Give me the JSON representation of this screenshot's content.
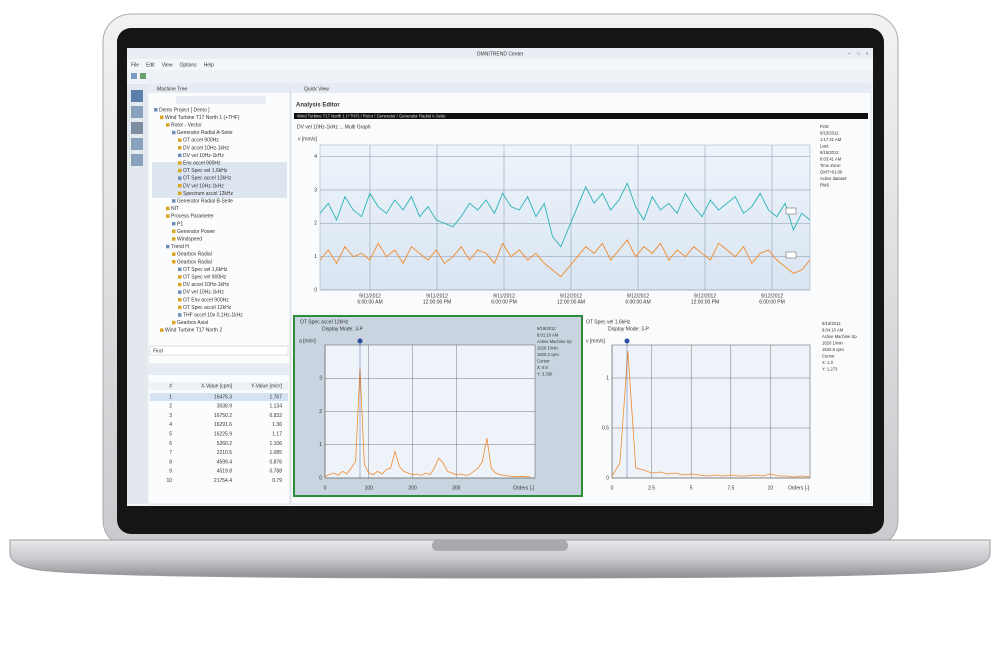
{
  "window": {
    "title": "OMNITREND Center",
    "menu": [
      "File",
      "Edit",
      "View",
      "Options",
      "Help"
    ]
  },
  "machine_tree": {
    "title": "Machine Tree",
    "items": [
      "Demo Project [ Demo ]",
      "Wind Turbine T17 North 1 (+THF)",
      "Rotor - Vector",
      "Generator Radial A-Seite",
      "OT accel 900Hz",
      "DV accel 10Hz-1kHz",
      "DV vel 10Hz-1kHz",
      "Env accel 900Hz",
      "OT Spec vel 1,6kHz",
      "OT Spec accel 12kHz",
      "DV vel 10Hz-1kHz",
      "Spectrum accel 12kHz",
      "Generator Radial B-Seite",
      "NIT",
      "Process Parameter",
      "P1",
      "Generator Power",
      "Windspeed",
      "Trend H",
      "Gearbox Radial",
      "Gearbox Radial",
      "OT Spec vel 1,6kHz",
      "OT Spec vel 900Hz",
      "DV accel 10Hz-1kHz",
      "DV vel 10Hz-1kHz",
      "OT Env accel 900Hz",
      "OT Spec accel 12kHz",
      "THF accel 10x 0,1Hz-1kHz",
      "Gearbox Axial",
      "Wind Turbine T17 North 2"
    ],
    "find": "Find"
  },
  "table": {
    "columns": [
      "#",
      "X-Value [cpm]",
      "Y-Value [m/s²]"
    ],
    "rows": [
      [
        1,
        16475.3,
        1.767
      ],
      [
        2,
        3038.9,
        1.134
      ],
      [
        3,
        16750.2,
        0.832
      ],
      [
        4,
        16291.6,
        1.36
      ],
      [
        5,
        16225.9,
        1.17
      ],
      [
        6,
        5260.2,
        1.106
      ],
      [
        7,
        2210.5,
        1.085
      ],
      [
        8,
        4599.4,
        0.876
      ],
      [
        9,
        4519.8,
        0.788
      ],
      [
        10,
        21754.4,
        0.79
      ]
    ]
  },
  "quick_view": {
    "tab": "Quick View",
    "editor_title": "Analysis Editor",
    "path": "Wind Turbine T17 North 1 (+THF) / Rotor / Generator / Generator Radial A-Seite"
  },
  "chart_data": [
    {
      "type": "trend",
      "subtitle": "DV vel 10Hz-1kHz ... Multi Graph",
      "y_label": "v [mm/s]",
      "ylim": [
        0,
        4.2
      ],
      "yticks": [
        0,
        1,
        2,
        3,
        4
      ],
      "grid": true,
      "x_tick_labels": [
        {
          "date": "9/11/2012",
          "time": "6:00:00 AM"
        },
        {
          "date": "9/11/2012",
          "time": "12:00:00 PM"
        },
        {
          "date": "9/11/2012",
          "time": "6:00:00 PM"
        },
        {
          "date": "9/12/2012",
          "time": "12:00:00 AM"
        },
        {
          "date": "9/12/2012",
          "time": "6:00:00 AM"
        },
        {
          "date": "9/12/2012",
          "time": "12:00:00 PM"
        },
        {
          "date": "9/12/2012",
          "time": "6:00:00 PM"
        }
      ],
      "series": [
        {
          "color": "#2bb3b8",
          "values": [
            2.3,
            2.6,
            2.1,
            2.8,
            2.4,
            2.2,
            2.9,
            2.5,
            2.3,
            2.7,
            2.4,
            2.8,
            2.2,
            2.5,
            2.1,
            2.0,
            1.9,
            2.2,
            2.6,
            2.4,
            2.7,
            2.3,
            2.9,
            2.5,
            2.4,
            2.8,
            2.2,
            2.6,
            1.6,
            1.3,
            1.9,
            2.5,
            3.1,
            2.6,
            2.9,
            2.4,
            2.7,
            3.2,
            2.5,
            2.1,
            2.8,
            2.4,
            2.6,
            2.3,
            2.9,
            2.5,
            2.2,
            2.7,
            2.4,
            2.6,
            2.8,
            2.3,
            2.5,
            2.9,
            2.4,
            2.2,
            2.6,
            1.8,
            2.3,
            2.1
          ]
        },
        {
          "color": "#f08a2c",
          "values": [
            0.9,
            1.2,
            0.8,
            1.3,
            1.0,
            1.1,
            0.9,
            1.4,
            1.0,
            1.2,
            0.8,
            1.3,
            1.1,
            0.9,
            1.2,
            0.8,
            1.0,
            1.3,
            0.9,
            1.2,
            1.1,
            0.8,
            1.4,
            1.0,
            1.2,
            0.9,
            1.1,
            0.8,
            0.6,
            0.4,
            0.7,
            1.0,
            1.3,
            1.1,
            1.4,
            0.9,
            1.2,
            1.5,
            1.0,
            1.3,
            1.1,
            1.4,
            0.9,
            1.2,
            1.0,
            1.3,
            1.1,
            0.9,
            1.4,
            1.2,
            1.0,
            1.3,
            0.8,
            1.1,
            1.2,
            0.9,
            0.7,
            0.5,
            0.6,
            0.9
          ]
        }
      ],
      "info": [
        "First:",
        "9/10/2012",
        "1:17:41 AM",
        "Last:",
        "9/16/2012",
        "8:03:41 AM",
        "Time Zone:",
        "GMT+01:00",
        "Active dataset:",
        "RMS"
      ]
    },
    {
      "type": "spectrum",
      "title": "OT Spec accel 12kHz",
      "mode": "Display Mode: 3-P",
      "y_label": "a [m/s²]",
      "x_label": "Orders [-]",
      "xlim": [
        0,
        480
      ],
      "ylim": [
        0,
        4
      ],
      "xticks": [
        0,
        100,
        200,
        300
      ],
      "yticks": [
        0,
        1,
        2,
        3
      ],
      "grid": true,
      "color": "#f08a2c",
      "x": [
        0,
        10,
        20,
        30,
        40,
        50,
        60,
        70,
        80,
        90,
        100,
        110,
        120,
        130,
        140,
        150,
        160,
        170,
        180,
        190,
        200,
        210,
        220,
        230,
        240,
        250,
        260,
        270,
        280,
        290,
        300,
        310,
        320,
        330,
        340,
        350,
        360,
        370,
        380,
        390,
        400,
        410,
        420,
        430,
        440,
        450,
        460,
        470
      ],
      "values": [
        0.05,
        0.1,
        0.15,
        0.08,
        0.2,
        0.12,
        0.3,
        0.5,
        3.3,
        0.4,
        0.15,
        0.1,
        0.2,
        0.12,
        0.25,
        0.3,
        0.8,
        0.35,
        0.2,
        0.15,
        0.1,
        0.12,
        0.08,
        0.15,
        0.1,
        0.3,
        0.6,
        0.45,
        0.2,
        0.15,
        0.1,
        0.12,
        0.08,
        0.1,
        0.2,
        0.3,
        0.5,
        1.2,
        0.3,
        0.15,
        0.1,
        0.08,
        0.06,
        0.05,
        0.04,
        0.05,
        0.04,
        0.03
      ],
      "info": [
        "9/19/2012",
        "8:01:10 AM",
        "Active Machine Sp",
        "1620 1/min",
        "1620.3 cpm",
        "Cursor",
        "X: 8.0",
        "Y: 3.330"
      ]
    },
    {
      "type": "spectrum",
      "title": "OT Spec vel 1,6kHz",
      "mode": "Display Mode: 3-P",
      "y_label": "v [mm/s]",
      "x_label": "Orders [-]",
      "xlim": [
        0,
        12.5
      ],
      "ylim": [
        0,
        1.33
      ],
      "xticks": [
        0,
        2.5,
        5,
        7.5,
        10
      ],
      "yticks": [
        0,
        0.5,
        1
      ],
      "grid": true,
      "color": "#f08a2c",
      "x": [
        0,
        0.5,
        1,
        1.5,
        2,
        2.5,
        3,
        3.5,
        4,
        4.5,
        5,
        5.5,
        6,
        6.5,
        7,
        7.5,
        8,
        8.5,
        9,
        9.5,
        10,
        10.5,
        11,
        11.5,
        12,
        12.5
      ],
      "values": [
        0.02,
        0.15,
        1.27,
        0.1,
        0.08,
        0.05,
        0.06,
        0.04,
        0.05,
        0.03,
        0.04,
        0.03,
        0.02,
        0.03,
        0.02,
        0.03,
        0.02,
        0.02,
        0.03,
        0.02,
        0.04,
        0.02,
        0.02,
        0.01,
        0.02,
        0.01
      ],
      "info": [
        "9/16/2012",
        "8:04:10 AM",
        "Active Machine Sp",
        "1620 1/min",
        "1632.9 cpm",
        "Cursor",
        "X: 1.0",
        "Y: 1.273"
      ]
    }
  ]
}
